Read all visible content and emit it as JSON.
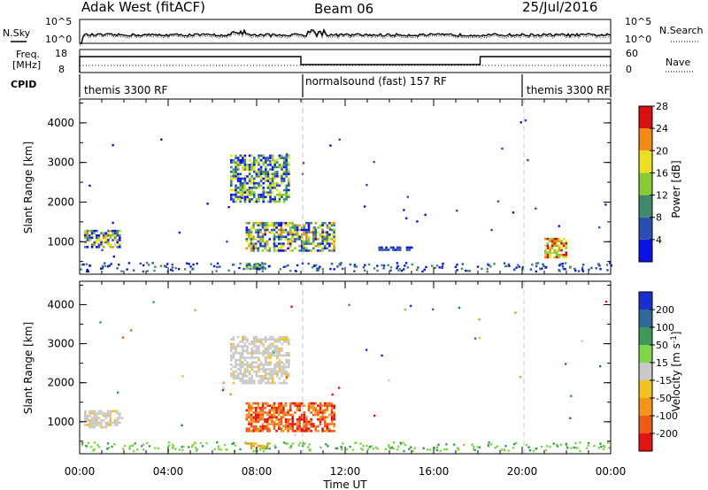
{
  "header": {
    "station": "Adak West (fitACF)",
    "beam": "Beam 06",
    "date": "25/Jul/2016"
  },
  "noise_panel": {
    "left_label": "N.Sky",
    "right_label": "N.Search",
    "left_ticks": [
      "10^5",
      "10^0"
    ],
    "right_ticks": [
      "10^5",
      "10^0"
    ]
  },
  "freq_panel": {
    "left_label_1": "Freq.",
    "left_label_2": "[MHz]",
    "right_label": "Nave",
    "left_ticks": [
      "18",
      "8"
    ],
    "right_ticks": [
      "60",
      "0"
    ]
  },
  "cpid": {
    "label": "CPID",
    "segments": [
      {
        "name": "themis 3300 RF",
        "start": 0,
        "end": 10
      },
      {
        "name": "normalsound (fast) 157 RF",
        "start": 10,
        "end": 20
      },
      {
        "name": "themis 3300 RF",
        "start": 20,
        "end": 24
      }
    ]
  },
  "x_axis": {
    "label": "Time UT",
    "ticks": [
      "00:00",
      "04:00",
      "08:00",
      "12:00",
      "16:00",
      "20:00",
      "00:00"
    ],
    "range_hours": [
      0,
      24
    ]
  },
  "chart_data": [
    {
      "type": "heatmap",
      "name": "power",
      "ylabel": "Slant Range [km]",
      "ylim": [
        180,
        4600
      ],
      "yticks": [
        "1000",
        "2000",
        "3000",
        "4000"
      ],
      "colorbar": {
        "label": "Power [dB]",
        "ticks": [
          "4",
          "8",
          "12",
          "16",
          "20",
          "24",
          "28"
        ],
        "colors": [
          "#0a12e6",
          "#2a4fb0",
          "#3f8a6a",
          "#88cc33",
          "#e8e020",
          "#f28a14",
          "#d81010"
        ]
      },
      "regions": [
        {
          "t": [
            0.2,
            1.8
          ],
          "r": [
            880,
            1300
          ],
          "level": "mixed-high"
        },
        {
          "t": [
            6.8,
            9.5
          ],
          "r": [
            2000,
            3200
          ],
          "level": "mixed"
        },
        {
          "t": [
            7.5,
            11.5
          ],
          "r": [
            750,
            1500
          ],
          "level": "mixed-high"
        },
        {
          "t": [
            7.5,
            8.6
          ],
          "r": [
            300,
            470
          ],
          "level": "mid"
        },
        {
          "t": [
            13.5,
            15.0
          ],
          "r": [
            780,
            880
          ],
          "level": "low"
        },
        {
          "t": [
            21.0,
            22.0
          ],
          "r": [
            600,
            1100
          ],
          "level": "high"
        }
      ]
    },
    {
      "type": "heatmap",
      "name": "velocity",
      "ylabel": "Slant Range [km]",
      "ylim": [
        180,
        4600
      ],
      "yticks": [
        "1000",
        "2000",
        "3000",
        "4000"
      ],
      "colorbar": {
        "label": "Velocity [m s",
        "label_sup": "-1",
        "label_end": "]",
        "ticks": [
          "200",
          "100",
          "50",
          "15",
          "-15",
          "-50",
          "-100",
          "-200"
        ],
        "colors": [
          "#1a2fd0",
          "#2f6a9a",
          "#3e9a5a",
          "#7ed64a",
          "#c9c9c9",
          "#f2c020",
          "#f5951c",
          "#ee5a18",
          "#e21414"
        ]
      },
      "regions": [
        {
          "t": [
            0.2,
            1.8
          ],
          "r": [
            880,
            1300
          ],
          "level": "near-zero"
        },
        {
          "t": [
            6.8,
            9.5
          ],
          "r": [
            2000,
            3200
          ],
          "level": "near-zero"
        },
        {
          "t": [
            7.5,
            11.5
          ],
          "r": [
            750,
            1500
          ],
          "level": "negative"
        },
        {
          "t": [
            7.5,
            8.6
          ],
          "r": [
            300,
            470
          ],
          "level": "slight-negative"
        }
      ]
    }
  ]
}
